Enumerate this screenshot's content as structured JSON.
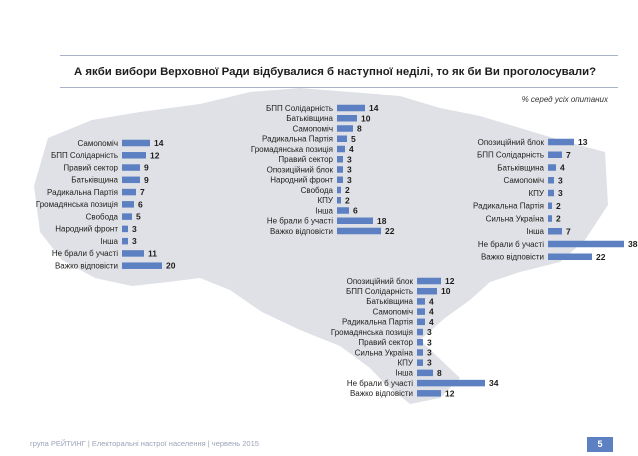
{
  "title": "А якби вибори Верховної Ради відбувалися б наступної неділі, то як би Ви проголосували?",
  "subtitle": "% серед усіх опитаних",
  "footer": {
    "text": "група РЕЙТИНГ  |  Електоральні настрої населення  |  червень 2015",
    "page": "5"
  },
  "colors": {
    "bar": "#5d80c2",
    "map": "#dfe1e6"
  },
  "chart_data": [
    {
      "type": "bar",
      "categories": [
        "Самопоміч",
        "БПП Солідарність",
        "Правий сектор",
        "Батьківщина",
        "Радикальна Партія",
        "Громадянська позиція",
        "Свобода",
        "Народний фронт",
        "Інша",
        "Не брали б участі",
        "Важко відповісти"
      ],
      "values": [
        14,
        12,
        9,
        9,
        7,
        6,
        5,
        3,
        3,
        11,
        20
      ],
      "title": "",
      "xlabel": "",
      "ylabel": "",
      "xlim": [
        0,
        38
      ],
      "grid": false,
      "legend": "none"
    },
    {
      "type": "bar",
      "categories": [
        "БПП Солідарність",
        "Батьківщина",
        "Самопоміч",
        "Радикальна Партія",
        "Громадянська позиція",
        "Правий сектор",
        "Опозиційний блок",
        "Народний фронт",
        "Свобода",
        "КПУ",
        "Інша",
        "Не брали б участі",
        "Важко відповісти"
      ],
      "values": [
        14,
        10,
        8,
        5,
        4,
        3,
        3,
        3,
        2,
        2,
        6,
        18,
        22
      ],
      "title": "",
      "xlabel": "",
      "ylabel": "",
      "xlim": [
        0,
        38
      ],
      "grid": false,
      "legend": "none"
    },
    {
      "type": "bar",
      "categories": [
        "Опозиційний блок",
        "БПП Солідарність",
        "Батьківщина",
        "Самопоміч",
        "КПУ",
        "Радикальна Партія",
        "Сильна Україна",
        "Інша",
        "Не брали б участі",
        "Важко відповісти"
      ],
      "values": [
        13,
        7,
        4,
        3,
        3,
        2,
        2,
        7,
        38,
        22
      ],
      "title": "",
      "xlabel": "",
      "ylabel": "",
      "xlim": [
        0,
        38
      ],
      "grid": false,
      "legend": "none"
    },
    {
      "type": "bar",
      "categories": [
        "Опозиційний блок",
        "БПП Солідарність",
        "Батьківщина",
        "Самопоміч",
        "Радикальна Партія",
        "Громадянська позиція",
        "Правий сектор",
        "Сильна Україна",
        "КПУ",
        "Інша",
        "Не брали б участі",
        "Важко відповісти"
      ],
      "values": [
        12,
        10,
        4,
        4,
        4,
        3,
        3,
        3,
        3,
        8,
        34,
        12
      ],
      "title": "",
      "xlabel": "",
      "ylabel": "",
      "xlim": [
        0,
        38
      ],
      "grid": false,
      "legend": "none"
    }
  ]
}
